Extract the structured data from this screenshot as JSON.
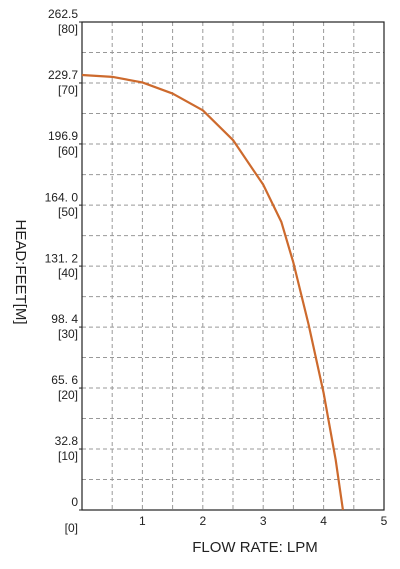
{
  "chart_data": {
    "type": "line",
    "x_label": "FLOW RATE: LPM",
    "y_label": "HEAD:FEET[M]",
    "xlim": [
      0,
      5
    ],
    "xticks": [
      1,
      2,
      3,
      4,
      5
    ],
    "ylim": [
      0,
      262.5
    ],
    "yticks": [
      0,
      32.8,
      {
        "value": 65.6,
        "label": "65. 6"
      },
      {
        "value": 98.4,
        "label": "98. 4"
      },
      {
        "value": 131.2,
        "label": "131. 2"
      },
      {
        "value": 164,
        "label": "164. 0"
      },
      196.9,
      229.7,
      262.5
    ],
    "y2lim": [
      0,
      80
    ],
    "y2ticks": [
      {
        "value": 0,
        "label": "[0]"
      },
      {
        "value": 10,
        "label": "[10]"
      },
      {
        "value": 20,
        "label": "[20]"
      },
      {
        "value": 30,
        "label": "[30]"
      },
      {
        "value": 40,
        "label": "[40]"
      },
      {
        "value": 50,
        "label": "[50]"
      },
      {
        "value": 60,
        "label": "[60]"
      },
      {
        "value": 70,
        "label": "[70]"
      },
      {
        "value": 80,
        "label": "[80]"
      }
    ],
    "grid": true,
    "x_gridlines": [
      0.5,
      1,
      1.5,
      2,
      2.5,
      3,
      3.5,
      4,
      4.5
    ],
    "y_gridlines": [
      16.4,
      32.8,
      49.2,
      65.6,
      82,
      98.4,
      114.8,
      131.2,
      147.6,
      164,
      180.4,
      196.9,
      213.3,
      229.7,
      246.1
    ],
    "series": [
      {
        "color": "#cd6a2d",
        "x": [
          0,
          0.5,
          1,
          1.5,
          2,
          2.5,
          3,
          3.3,
          3.5,
          3.75,
          4,
          4.2,
          4.32
        ],
        "values": [
          234,
          233,
          230,
          224,
          215,
          199,
          175,
          155,
          133,
          100,
          63,
          27,
          0
        ]
      }
    ]
  }
}
